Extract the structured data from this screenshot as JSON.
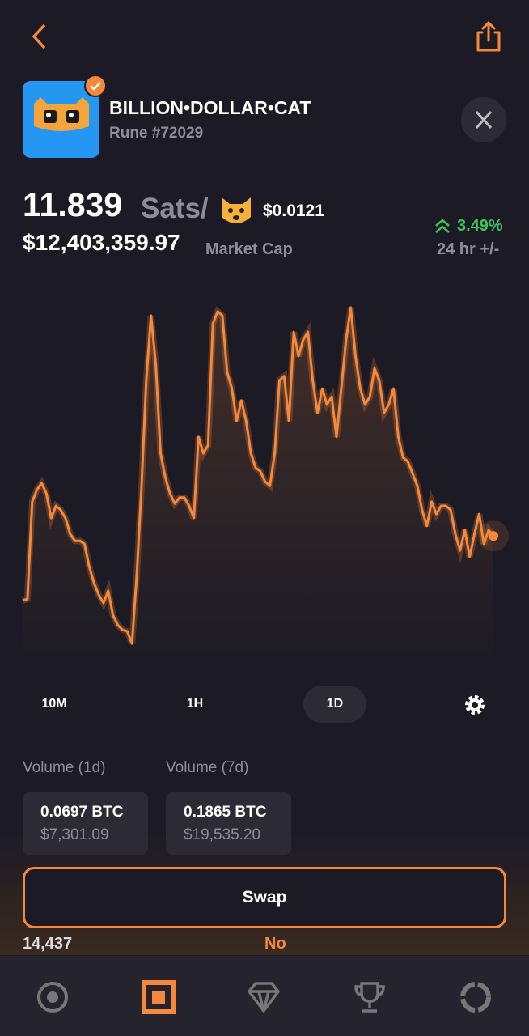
{
  "token": {
    "name": "BILLION•DOLLAR•CAT",
    "rune": "Rune #72029"
  },
  "price": {
    "sats": "11.839",
    "unit": "Sats/",
    "usd": "$0.0121",
    "market_cap": "$12,403,359.97",
    "market_cap_label": "Market Cap",
    "change": "3.49%",
    "change_label": "24 hr +/-"
  },
  "chart_data": {
    "type": "line",
    "color": "#f5883a",
    "ylim": [
      0,
      100
    ],
    "values": [
      17.0,
      17.4,
      43.5,
      46.7,
      48.5,
      45.7,
      39.1,
      42.4,
      41.3,
      39.1,
      34.8,
      33.0,
      33.0,
      32.2,
      26.1,
      21.7,
      18.5,
      16.3,
      19.6,
      13.0,
      10.4,
      9.1,
      8.7,
      5.4,
      23.9,
      47.8,
      76.1,
      93.5,
      80.4,
      56.5,
      50.0,
      45.7,
      43.0,
      44.6,
      44.6,
      42.4,
      39.1,
      60.9,
      56.5,
      58.7,
      91.3,
      94.6,
      93.5,
      78.3,
      73.9,
      65.2,
      70.7,
      65.2,
      56.5,
      52.6,
      51.7,
      48.9,
      47.8,
      56.5,
      76.1,
      77.2,
      65.2,
      89.1,
      82.6,
      87.0,
      89.1,
      76.1,
      67.4,
      73.9,
      69.6,
      71.7,
      60.9,
      73.9,
      87.0,
      95.7,
      82.6,
      73.9,
      69.6,
      71.7,
      79.3,
      76.1,
      67.4,
      69.6,
      73.9,
      60.9,
      55.4,
      54.3,
      51.1,
      47.8,
      41.3,
      37.0,
      43.5,
      40.2,
      42.4,
      42.4,
      41.3,
      34.8,
      30.4,
      35.9,
      28.7,
      34.8,
      40.2,
      32.2,
      35.9,
      34.3
    ]
  },
  "time_ranges": [
    "10M",
    "1H",
    "1D"
  ],
  "volumes": [
    {
      "label": "Volume (1d)",
      "btc": "0.0697 BTC",
      "usd": "$7,301.09"
    },
    {
      "label": "Volume (7d)",
      "btc": "0.1865 BTC",
      "usd": "$19,535.20"
    }
  ],
  "swap": "Swap",
  "footer": {
    "left": "14,437",
    "right": "No"
  }
}
